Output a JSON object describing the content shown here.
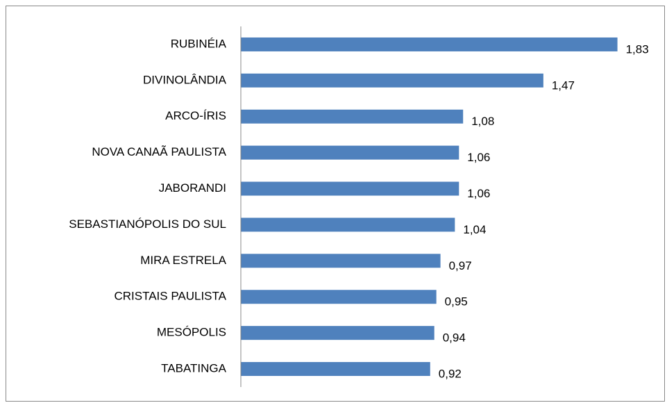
{
  "chart_data": {
    "type": "bar",
    "orientation": "horizontal",
    "categories": [
      "RUBINÉIA",
      "DIVINOLÂNDIA",
      "ARCO-ÍRIS",
      "NOVA CANAÃ PAULISTA",
      "JABORANDI",
      "SEBASTIANÓPOLIS DO SUL",
      "MIRA ESTRELA",
      "CRISTAIS PAULISTA",
      "MESÓPOLIS",
      "TABATINGA"
    ],
    "values": [
      1.83,
      1.47,
      1.08,
      1.06,
      1.06,
      1.04,
      0.97,
      0.95,
      0.94,
      0.92
    ],
    "value_labels": [
      "1,83",
      "1,47",
      "1,08",
      "1,06",
      "1,06",
      "1,04",
      "0,97",
      "0,95",
      "0,94",
      "0,92"
    ],
    "color": "#4f81bd",
    "xlim": [
      0,
      2
    ]
  }
}
